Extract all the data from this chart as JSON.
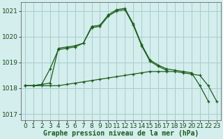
{
  "title": "Graphe pression niveau de la mer (hPa)",
  "bg_color": "#d4eded",
  "grid_color": "#a8cccc",
  "line_color": "#1a5c1a",
  "xlim": [
    -0.5,
    23.5
  ],
  "ylim": [
    1016.75,
    1021.35
  ],
  "yticks": [
    1017,
    1018,
    1019,
    1020,
    1021
  ],
  "xticks": [
    0,
    1,
    2,
    3,
    4,
    5,
    6,
    7,
    8,
    9,
    10,
    11,
    12,
    13,
    14,
    15,
    16,
    17,
    18,
    19,
    20,
    21,
    22,
    23
  ],
  "line1_x": [
    0,
    1,
    2,
    3,
    4,
    5,
    6,
    7,
    8,
    9,
    10,
    11,
    12,
    13,
    14,
    15,
    16,
    17,
    18,
    19,
    20,
    21,
    22,
    23
  ],
  "line1_y": [
    1018.1,
    1018.1,
    1018.1,
    1018.1,
    1018.1,
    1018.15,
    1018.2,
    1018.25,
    1018.3,
    1018.35,
    1018.4,
    1018.45,
    1018.5,
    1018.55,
    1018.6,
    1018.65,
    1018.65,
    1018.65,
    1018.65,
    1018.6,
    1018.55,
    1018.5,
    1018.1,
    1017.5
  ],
  "line2_x": [
    0,
    1,
    2,
    3,
    4,
    5,
    6,
    7,
    8,
    9,
    10,
    11,
    12,
    13,
    14,
    15,
    16,
    17,
    18,
    19,
    20,
    21,
    22
  ],
  "line2_y": [
    1018.1,
    1018.1,
    1018.15,
    1018.2,
    1019.55,
    1019.6,
    1019.65,
    1019.75,
    1020.4,
    1020.45,
    1020.85,
    1021.05,
    1021.1,
    1020.5,
    1019.7,
    1019.1,
    1018.9,
    1018.75,
    1018.7,
    1018.65,
    1018.6,
    1018.1,
    1017.5
  ],
  "line3_x": [
    0,
    1,
    2,
    3,
    4,
    5,
    6,
    7,
    8,
    9,
    10,
    11,
    12,
    13,
    14,
    15,
    16,
    17
  ],
  "line3_y": [
    1018.1,
    1018.1,
    1018.15,
    1018.75,
    1019.5,
    1019.55,
    1019.6,
    1019.75,
    1020.35,
    1020.4,
    1020.8,
    1021.0,
    1021.05,
    1020.45,
    1019.65,
    1019.05,
    1018.85,
    1018.7
  ],
  "xlabel_fontsize": 6.5,
  "ylabel_fontsize": 6.5,
  "title_fontsize": 7.0
}
